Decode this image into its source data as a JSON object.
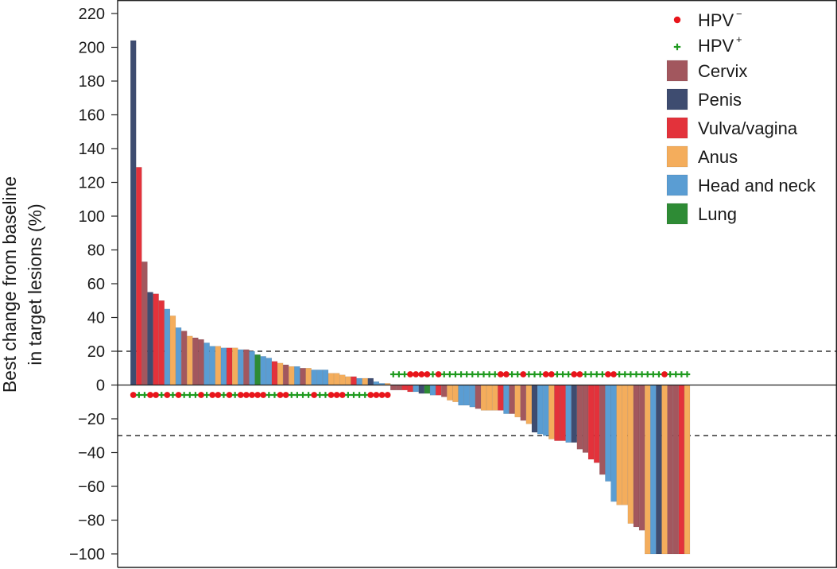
{
  "chart_data": {
    "type": "bar",
    "title": "",
    "xlabel": "",
    "ylabel": [
      "Best change from baseline",
      "in target lesions (%)"
    ],
    "ylim": [
      -105,
      225
    ],
    "yticks": [
      220,
      200,
      180,
      160,
      140,
      120,
      100,
      80,
      60,
      40,
      20,
      0,
      -20,
      -40,
      -60,
      -80,
      -100
    ],
    "ytick_labels": [
      "220",
      "200",
      "180",
      "160",
      "140",
      "120",
      "100",
      "80",
      "60",
      "40",
      "20",
      "0",
      "−20",
      "−40",
      "−60",
      "−80",
      "−100"
    ],
    "reference_lines": [
      20,
      -30
    ],
    "legend": {
      "position": "top-right",
      "hpv": [
        {
          "key": "neg",
          "label": "HPV",
          "sup": "−",
          "symbol": "circle",
          "color": "#e8151b"
        },
        {
          "key": "pos",
          "label": "HPV",
          "sup": "+",
          "symbol": "plus",
          "color": "#1f9a1f"
        }
      ],
      "cancers": [
        {
          "key": "cervix",
          "label": "Cervix",
          "color": "#a2575e"
        },
        {
          "key": "penis",
          "label": "Penis",
          "color": "#3e4c70"
        },
        {
          "key": "vulva",
          "label": "Vulva/vagina",
          "color": "#e3323b"
        },
        {
          "key": "anus",
          "label": "Anus",
          "color": "#f4ad5c"
        },
        {
          "key": "headneck",
          "label": "Head and neck",
          "color": "#5a9dd3"
        },
        {
          "key": "lung",
          "label": "Lung",
          "color": "#2e8b35"
        }
      ]
    },
    "bars": [
      {
        "v": 204,
        "c": "penis",
        "h": "neg"
      },
      {
        "v": 129,
        "c": "vulva",
        "h": "pos"
      },
      {
        "v": 73,
        "c": "cervix",
        "h": "pos"
      },
      {
        "v": 55,
        "c": "penis",
        "h": "neg"
      },
      {
        "v": 54,
        "c": "vulva",
        "h": "neg"
      },
      {
        "v": 50,
        "c": "vulva",
        "h": "pos"
      },
      {
        "v": 45,
        "c": "headneck",
        "h": "neg"
      },
      {
        "v": 41,
        "c": "anus",
        "h": "pos"
      },
      {
        "v": 34,
        "c": "headneck",
        "h": "neg"
      },
      {
        "v": 32,
        "c": "cervix",
        "h": "pos"
      },
      {
        "v": 29,
        "c": "anus",
        "h": "pos"
      },
      {
        "v": 28,
        "c": "cervix",
        "h": "pos"
      },
      {
        "v": 27,
        "c": "cervix",
        "h": "neg"
      },
      {
        "v": 25,
        "c": "headneck",
        "h": "pos"
      },
      {
        "v": 23,
        "c": "headneck",
        "h": "neg"
      },
      {
        "v": 23,
        "c": "anus",
        "h": "neg"
      },
      {
        "v": 22,
        "c": "headneck",
        "h": "pos"
      },
      {
        "v": 22,
        "c": "vulva",
        "h": "neg"
      },
      {
        "v": 22,
        "c": "anus",
        "h": "pos"
      },
      {
        "v": 21,
        "c": "headneck",
        "h": "neg"
      },
      {
        "v": 21,
        "c": "cervix",
        "h": "neg"
      },
      {
        "v": 20,
        "c": "headneck",
        "h": "neg"
      },
      {
        "v": 18,
        "c": "lung",
        "h": "neg"
      },
      {
        "v": 17,
        "c": "headneck",
        "h": "neg"
      },
      {
        "v": 16,
        "c": "headneck",
        "h": "pos"
      },
      {
        "v": 14,
        "c": "vulva",
        "h": "pos"
      },
      {
        "v": 13,
        "c": "anus",
        "h": "neg"
      },
      {
        "v": 12,
        "c": "cervix",
        "h": "neg"
      },
      {
        "v": 11,
        "c": "anus",
        "h": "pos"
      },
      {
        "v": 11,
        "c": "headneck",
        "h": "pos"
      },
      {
        "v": 10,
        "c": "cervix",
        "h": "pos"
      },
      {
        "v": 10,
        "c": "anus",
        "h": "pos"
      },
      {
        "v": 9,
        "c": "headneck",
        "h": "neg"
      },
      {
        "v": 9,
        "c": "headneck",
        "h": "pos"
      },
      {
        "v": 9,
        "c": "headneck",
        "h": "pos"
      },
      {
        "v": 7,
        "c": "anus",
        "h": "neg"
      },
      {
        "v": 7,
        "c": "anus",
        "h": "neg"
      },
      {
        "v": 6,
        "c": "anus",
        "h": "neg"
      },
      {
        "v": 5,
        "c": "anus",
        "h": "pos"
      },
      {
        "v": 5,
        "c": "vulva",
        "h": "pos"
      },
      {
        "v": 4,
        "c": "headneck",
        "h": "pos"
      },
      {
        "v": 4,
        "c": "anus",
        "h": "pos"
      },
      {
        "v": 4,
        "c": "penis",
        "h": "neg"
      },
      {
        "v": 2,
        "c": "headneck",
        "h": "neg"
      },
      {
        "v": 1,
        "c": "headneck",
        "h": "neg"
      },
      {
        "v": 1,
        "c": "anus",
        "h": "neg"
      },
      {
        "v": -3,
        "c": "cervix",
        "h": "pos"
      },
      {
        "v": -3,
        "c": "cervix",
        "h": "pos"
      },
      {
        "v": -3,
        "c": "vulva",
        "h": "pos"
      },
      {
        "v": -4,
        "c": "vulva",
        "h": "neg"
      },
      {
        "v": -4,
        "c": "headneck",
        "h": "neg"
      },
      {
        "v": -5,
        "c": "penis",
        "h": "neg"
      },
      {
        "v": -5,
        "c": "lung",
        "h": "neg"
      },
      {
        "v": -6,
        "c": "headneck",
        "h": "pos"
      },
      {
        "v": -6,
        "c": "vulva",
        "h": "neg"
      },
      {
        "v": -7,
        "c": "cervix",
        "h": "pos"
      },
      {
        "v": -9,
        "c": "anus",
        "h": "pos"
      },
      {
        "v": -10,
        "c": "anus",
        "h": "pos"
      },
      {
        "v": -12,
        "c": "headneck",
        "h": "pos"
      },
      {
        "v": -12,
        "c": "headneck",
        "h": "pos"
      },
      {
        "v": -13,
        "c": "headneck",
        "h": "pos"
      },
      {
        "v": -14,
        "c": "cervix",
        "h": "pos"
      },
      {
        "v": -15,
        "c": "anus",
        "h": "pos"
      },
      {
        "v": -15,
        "c": "anus",
        "h": "pos"
      },
      {
        "v": -15,
        "c": "anus",
        "h": "pos"
      },
      {
        "v": -15,
        "c": "vulva",
        "h": "neg"
      },
      {
        "v": -17,
        "c": "headneck",
        "h": "neg"
      },
      {
        "v": -17,
        "c": "cervix",
        "h": "pos"
      },
      {
        "v": -19,
        "c": "anus",
        "h": "pos"
      },
      {
        "v": -21,
        "c": "cervix",
        "h": "neg"
      },
      {
        "v": -23,
        "c": "anus",
        "h": "pos"
      },
      {
        "v": -28,
        "c": "penis",
        "h": "pos"
      },
      {
        "v": -29,
        "c": "headneck",
        "h": "pos"
      },
      {
        "v": -30,
        "c": "headneck",
        "h": "neg"
      },
      {
        "v": -32,
        "c": "anus",
        "h": "neg"
      },
      {
        "v": -33,
        "c": "vulva",
        "h": "pos"
      },
      {
        "v": -33,
        "c": "vulva",
        "h": "pos"
      },
      {
        "v": -34,
        "c": "headneck",
        "h": "pos"
      },
      {
        "v": -34,
        "c": "penis",
        "h": "neg"
      },
      {
        "v": -38,
        "c": "cervix",
        "h": "neg"
      },
      {
        "v": -40,
        "c": "cervix",
        "h": "pos"
      },
      {
        "v": -44,
        "c": "vulva",
        "h": "pos"
      },
      {
        "v": -46,
        "c": "vulva",
        "h": "pos"
      },
      {
        "v": -53,
        "c": "cervix",
        "h": "pos"
      },
      {
        "v": -57,
        "c": "headneck",
        "h": "neg"
      },
      {
        "v": -69,
        "c": "headneck",
        "h": "neg"
      },
      {
        "v": -71,
        "c": "anus",
        "h": "pos"
      },
      {
        "v": -71,
        "c": "anus",
        "h": "pos"
      },
      {
        "v": -82,
        "c": "anus",
        "h": "pos"
      },
      {
        "v": -84,
        "c": "cervix",
        "h": "pos"
      },
      {
        "v": -86,
        "c": "cervix",
        "h": "pos"
      },
      {
        "v": -100,
        "c": "anus",
        "h": "pos"
      },
      {
        "v": -100,
        "c": "headneck",
        "h": "pos"
      },
      {
        "v": -100,
        "c": "penis",
        "h": "pos"
      },
      {
        "v": -100,
        "c": "anus",
        "h": "neg"
      },
      {
        "v": -100,
        "c": "cervix",
        "h": "pos"
      },
      {
        "v": -100,
        "c": "cervix",
        "h": "pos"
      },
      {
        "v": -100,
        "c": "vulva",
        "h": "pos"
      },
      {
        "v": -100,
        "c": "anus",
        "h": "pos"
      }
    ]
  }
}
